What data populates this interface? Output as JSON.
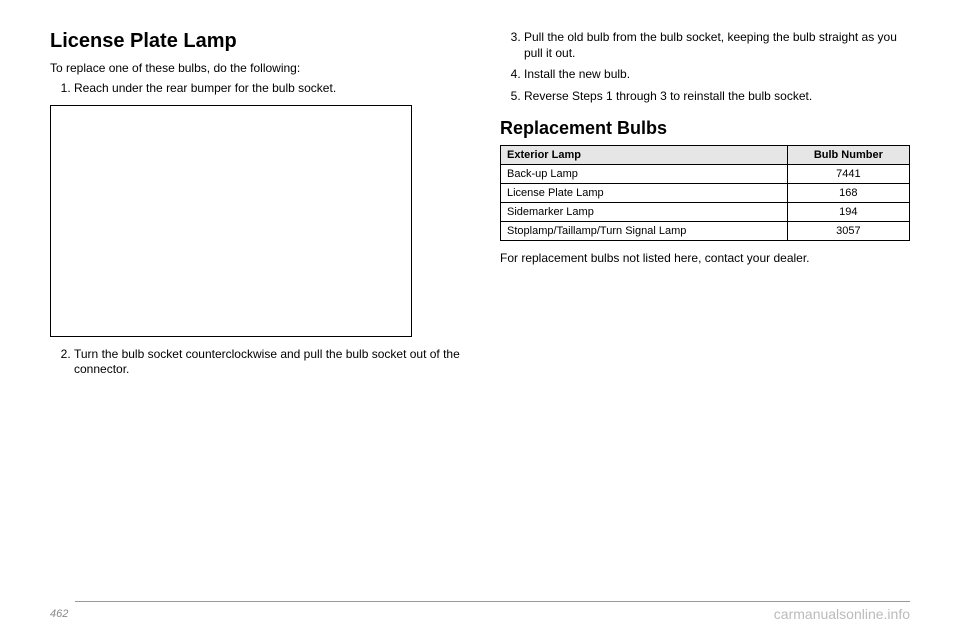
{
  "left": {
    "heading": "License Plate Lamp",
    "intro": "To replace one of these bulbs, do the following:",
    "step1": "Reach under the rear bumper for the bulb socket.",
    "step2": "Turn the bulb socket counterclockwise and pull the bulb socket out of the connector."
  },
  "right": {
    "step3": "Pull the old bulb from the bulb socket, keeping the bulb straight as you pull it out.",
    "step4": "Install the new bulb.",
    "step5": "Reverse Steps 1 through 3 to reinstall the bulb socket.",
    "heading2": "Replacement Bulbs",
    "table": {
      "header_lamp": "Exterior Lamp",
      "header_num": "Bulb Number",
      "rows": [
        {
          "lamp": "Back-up Lamp",
          "num": "7441"
        },
        {
          "lamp": "License Plate Lamp",
          "num": "168"
        },
        {
          "lamp": "Sidemarker Lamp",
          "num": "194"
        },
        {
          "lamp": "Stoplamp/Taillamp/Turn Signal Lamp",
          "num": "3057"
        }
      ]
    },
    "note": "For replacement bulbs not listed here, contact your dealer."
  },
  "footer": {
    "page": "462",
    "watermark": "carmanualsonline.info"
  }
}
